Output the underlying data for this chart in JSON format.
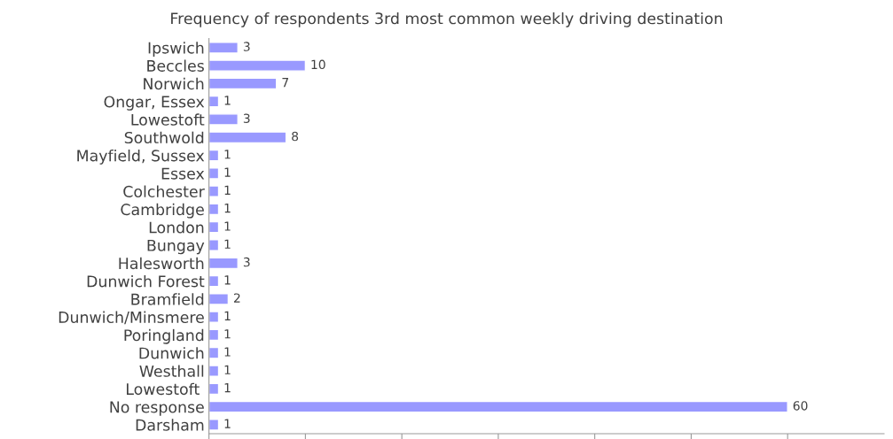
{
  "chart_data": {
    "type": "bar",
    "orientation": "horizontal",
    "title": "Frequency of respondents 3rd most common weekly driving destination",
    "categories": [
      "Ipswich",
      "Beccles",
      "Norwich",
      "Ongar, Essex",
      "Lowestoft",
      "Southwold",
      "Mayfield, Sussex",
      "Essex",
      "Colchester",
      "Cambridge",
      "London",
      "Bungay",
      "Halesworth",
      "Dunwich Forest",
      "Bramfield",
      "Dunwich/Minsmere",
      "Poringland",
      "Dunwich",
      "Westhall",
      "Lowestoft ",
      "No response",
      "Darsham"
    ],
    "values": [
      3,
      10,
      7,
      1,
      3,
      8,
      1,
      1,
      1,
      1,
      1,
      1,
      3,
      1,
      2,
      1,
      1,
      1,
      1,
      1,
      60,
      1
    ],
    "color": "#9999ff",
    "data_labels": true,
    "xlim": [
      0,
      70
    ],
    "xticks": [
      {
        "value": 0,
        "label": null
      },
      {
        "value": 10,
        "label": null
      },
      {
        "value": 20,
        "label": null
      },
      {
        "value": 30,
        "label": null
      },
      {
        "value": 40,
        "label": null
      },
      {
        "value": 50,
        "label": null
      },
      {
        "value": 60,
        "label": null
      }
    ],
    "tick_labels": "y",
    "grid": false,
    "legend": false
  }
}
